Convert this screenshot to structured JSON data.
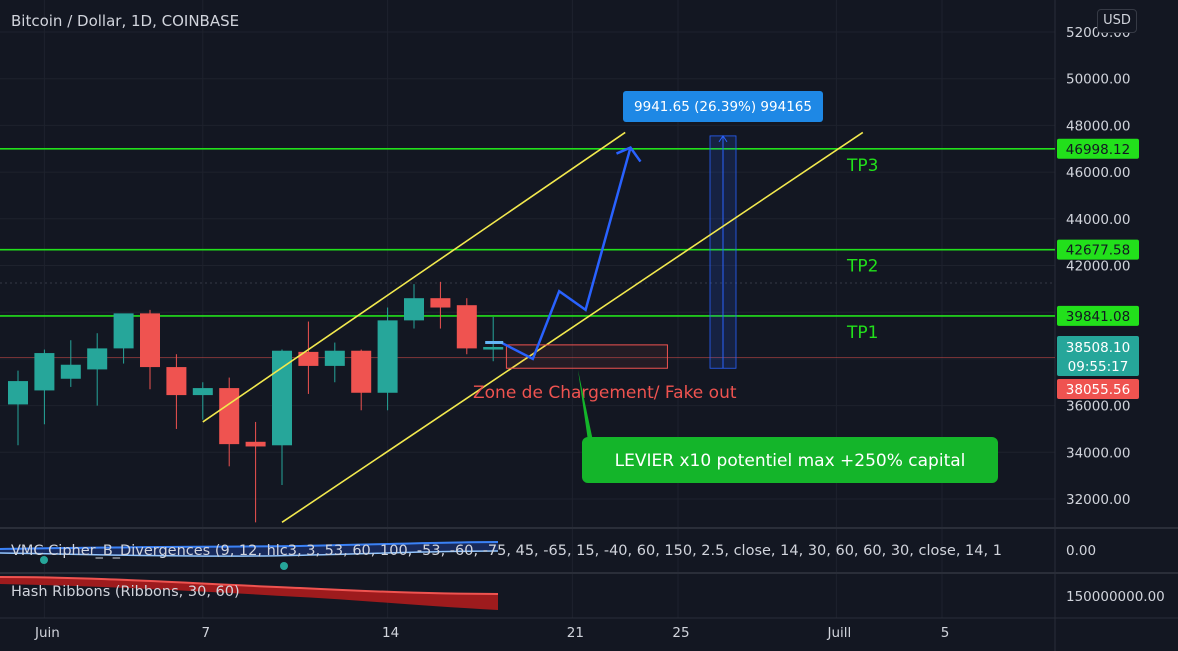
{
  "header": {
    "symbol_title": "Bitcoin / Dollar, 1D, COINBASE",
    "currency_button": "USD"
  },
  "colors": {
    "background": "#131722",
    "up": "#26a69a",
    "down": "#ef5350",
    "tp_line": "#22e01b",
    "channel": "#f2e94e",
    "projection_arrow": "#2962ff",
    "measure_label": "#1e88e5",
    "callout_green": "#14b52a"
  },
  "chart_data": {
    "type": "candlestick",
    "title": "Bitcoin / Dollar, 1D, COINBASE",
    "y_axis": {
      "ticks": [
        "32000.00",
        "34000.00",
        "36000.00",
        "38000.00",
        "40000.00",
        "42000.00",
        "44000.00",
        "46000.00",
        "48000.00",
        "50000.00",
        "52000.00"
      ],
      "range": [
        30800,
        52400
      ],
      "position": "right"
    },
    "x_axis": {
      "ticks": [
        {
          "label": "Juin",
          "day": 1
        },
        {
          "label": "7",
          "day": 7
        },
        {
          "label": "14",
          "day": 14
        },
        {
          "label": "21",
          "day": 21
        },
        {
          "label": "25",
          "day": 25
        },
        {
          "label": "Juill",
          "day": 31
        },
        {
          "label": "5",
          "day": 35
        }
      ]
    },
    "candles": [
      {
        "day": 0,
        "o": 36050,
        "h": 37500,
        "l": 34300,
        "c": 37050
      },
      {
        "day": 1,
        "o": 36650,
        "h": 38400,
        "l": 35200,
        "c": 38250
      },
      {
        "day": 2,
        "o": 37150,
        "h": 38800,
        "l": 36800,
        "c": 37750
      },
      {
        "day": 3,
        "o": 37550,
        "h": 39100,
        "l": 36000,
        "c": 38450
      },
      {
        "day": 4,
        "o": 38450,
        "h": 39900,
        "l": 37800,
        "c": 39950
      },
      {
        "day": 5,
        "o": 39950,
        "h": 40100,
        "l": 36700,
        "c": 37650
      },
      {
        "day": 6,
        "o": 37650,
        "h": 38200,
        "l": 35000,
        "c": 36450
      },
      {
        "day": 7,
        "o": 36450,
        "h": 37000,
        "l": 35400,
        "c": 36750
      },
      {
        "day": 8,
        "o": 36750,
        "h": 37200,
        "l": 33400,
        "c": 34350
      },
      {
        "day": 9,
        "o": 34450,
        "h": 35300,
        "l": 31000,
        "c": 34250
      },
      {
        "day": 10,
        "o": 34300,
        "h": 38400,
        "l": 32600,
        "c": 38350
      },
      {
        "day": 11,
        "o": 38300,
        "h": 39600,
        "l": 36500,
        "c": 37700
      },
      {
        "day": 12,
        "o": 37700,
        "h": 38700,
        "l": 37000,
        "c": 38350
      },
      {
        "day": 13,
        "o": 38350,
        "h": 38400,
        "l": 35800,
        "c": 36550
      },
      {
        "day": 14,
        "o": 36550,
        "h": 40200,
        "l": 35800,
        "c": 39650
      },
      {
        "day": 15,
        "o": 39650,
        "h": 41200,
        "l": 39300,
        "c": 40600
      },
      {
        "day": 16,
        "o": 40600,
        "h": 41300,
        "l": 39300,
        "c": 40200
      },
      {
        "day": 17,
        "o": 40300,
        "h": 40600,
        "l": 38200,
        "c": 38450
      },
      {
        "day": 18,
        "o": 38400,
        "h": 39800,
        "l": 37900,
        "c": 38510
      }
    ],
    "horizontal_levels": [
      {
        "label": "TP3",
        "price": "46998.12",
        "value": 46998.12
      },
      {
        "label": "TP2",
        "price": "42677.58",
        "value": 42677.58
      },
      {
        "label": "TP1",
        "price": "39841.08",
        "value": 39841.08
      }
    ],
    "current_price": {
      "price": "38508.10",
      "countdown": "09:55:17",
      "value": 38508.1
    },
    "red_level": {
      "price": "38055.56",
      "value": 38055.56
    },
    "measure": {
      "text": "9941.65 (26.39%) 994165",
      "from_value": 37600,
      "to_value": 47550
    },
    "channel": {
      "upper": [
        {
          "day": 7,
          "value": 35300
        },
        {
          "day": 23,
          "value": 47700
        }
      ],
      "lower": [
        {
          "day": 10,
          "value": 31000
        },
        {
          "day": 32,
          "value": 47700
        }
      ]
    },
    "projection_path": [
      {
        "day": 18.3,
        "value": 38700
      },
      {
        "day": 19.5,
        "value": 38000
      },
      {
        "day": 20.5,
        "value": 40900
      },
      {
        "day": 21.5,
        "value": 40100
      },
      {
        "day": 23.2,
        "value": 47050
      }
    ],
    "zone": {
      "label": "Zone de Chargement/ Fake out",
      "day_start": 18.5,
      "day_end": 24.6,
      "top": 38600,
      "bottom": 37600
    }
  },
  "annotations": {
    "tp3": "TP3",
    "tp2": "TP2",
    "tp1": "TP1",
    "zone_label": "Zone de Chargement/ Fake out",
    "leverage_callout": "LEVIER x10 potentiel max +250% capital"
  },
  "indicators": [
    {
      "name": "VMC Cipher_B_Divergences (9, 12, hlc3, 3, 53, 60, 100, -53, -60, -75, 45, -65, 15, -40, 60, 150, 2.5, close, 14, 30, 60, 60, 30, close, 14, 1",
      "value": "0.00"
    },
    {
      "name": "Hash Ribbons (Ribbons, 30, 60)",
      "value": "150000000.00"
    }
  ]
}
